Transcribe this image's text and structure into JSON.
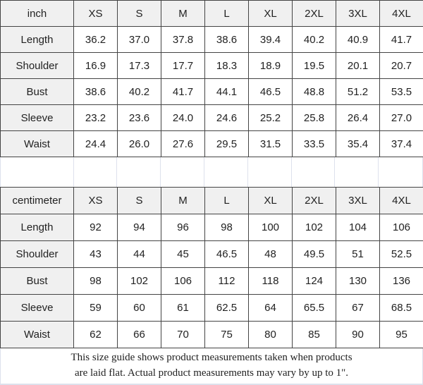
{
  "chart_data": [
    {
      "type": "table",
      "unit": "inch",
      "columns": [
        "inch",
        "XS",
        "S",
        "M",
        "L",
        "XL",
        "2XL",
        "3XL",
        "4XL"
      ],
      "rows": [
        {
          "label": "Length",
          "values": [
            "36.2",
            "37.0",
            "37.8",
            "38.6",
            "39.4",
            "40.2",
            "40.9",
            "41.7"
          ]
        },
        {
          "label": "Shoulder",
          "values": [
            "16.9",
            "17.3",
            "17.7",
            "18.3",
            "18.9",
            "19.5",
            "20.1",
            "20.7"
          ]
        },
        {
          "label": "Bust",
          "values": [
            "38.6",
            "40.2",
            "41.7",
            "44.1",
            "46.5",
            "48.8",
            "51.2",
            "53.5"
          ]
        },
        {
          "label": "Sleeve",
          "values": [
            "23.2",
            "23.6",
            "24.0",
            "24.6",
            "25.2",
            "25.8",
            "26.4",
            "27.0"
          ]
        },
        {
          "label": "Waist",
          "values": [
            "24.4",
            "26.0",
            "27.6",
            "29.5",
            "31.5",
            "33.5",
            "35.4",
            "37.4"
          ]
        }
      ]
    },
    {
      "type": "table",
      "unit": "centimeter",
      "columns": [
        "centimeter",
        "XS",
        "S",
        "M",
        "L",
        "XL",
        "2XL",
        "3XL",
        "4XL"
      ],
      "rows": [
        {
          "label": "Length",
          "values": [
            "92",
            "94",
            "96",
            "98",
            "100",
            "102",
            "104",
            "106"
          ]
        },
        {
          "label": "Shoulder",
          "values": [
            "43",
            "44",
            "45",
            "46.5",
            "48",
            "49.5",
            "51",
            "52.5"
          ]
        },
        {
          "label": "Bust",
          "values": [
            "98",
            "102",
            "106",
            "112",
            "118",
            "124",
            "130",
            "136"
          ]
        },
        {
          "label": "Sleeve",
          "values": [
            "59",
            "60",
            "61",
            "62.5",
            "64",
            "65.5",
            "67",
            "68.5"
          ]
        },
        {
          "label": "Waist",
          "values": [
            "62",
            "66",
            "70",
            "75",
            "80",
            "85",
            "90",
            "95"
          ]
        }
      ]
    }
  ],
  "footer": {
    "line1": "This size guide shows product measurements taken when products",
    "line2": "are laid flat. Actual product measurements may vary by up to 1\"."
  },
  "colors": {
    "border_dark": "#444444",
    "border_faint": "#dde1ec",
    "header_bg": "#f0f0f0",
    "text": "#222222"
  }
}
